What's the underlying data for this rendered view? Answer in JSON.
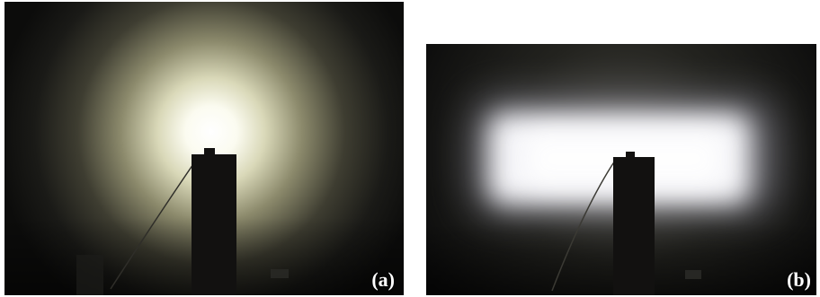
{
  "figure": {
    "panels": [
      {
        "label": "(a)",
        "description_icon": "round-beam-pattern",
        "beam_color": "#fffff2",
        "halo_color": "#c9c8a6"
      },
      {
        "label": "(b)",
        "description_icon": "rectangular-beam-pattern",
        "beam_color": "#fbfbff",
        "halo_color": "#a9a8b6"
      }
    ],
    "colors": {
      "background": "#ffffff",
      "wall_dark": "#0e0e0d",
      "post": "#121110",
      "label_text": "#ffffff"
    }
  }
}
